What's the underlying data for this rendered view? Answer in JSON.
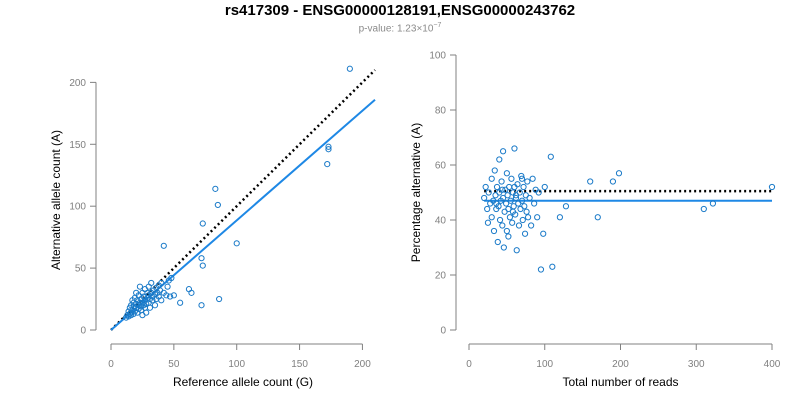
{
  "figure": {
    "title": "rs417309 - ENSG00000128191,ENSG00000243762",
    "subtitle_prefix": "p-value: 1.23",
    "subtitle_times": "×",
    "subtitle_base": "10",
    "subtitle_exp": "−7"
  },
  "colors": {
    "points": "#1a7ac8",
    "fit_line": "#1e88e5",
    "reference_line": "#000000",
    "axis": "#808080"
  },
  "chart_data": [
    {
      "type": "scatter",
      "title": "",
      "xlabel": "Reference allele count (G)",
      "ylabel": "Alternative allele count (A)",
      "xlim": [
        0,
        210
      ],
      "ylim": [
        0,
        210
      ],
      "xticks": [
        0,
        50,
        100,
        150,
        200
      ],
      "yticks": [
        0,
        50,
        100,
        150,
        200
      ],
      "grid": false,
      "fit_line": {
        "style": "solid",
        "from": [
          0,
          0
        ],
        "to": [
          210,
          186
        ]
      },
      "reference_line": {
        "style": "dotted",
        "from": [
          0,
          0
        ],
        "to": [
          210,
          210
        ]
      },
      "points": [
        [
          12,
          10
        ],
        [
          13,
          12
        ],
        [
          14,
          11
        ],
        [
          14,
          15
        ],
        [
          15,
          13
        ],
        [
          15,
          18
        ],
        [
          16,
          12
        ],
        [
          16,
          14
        ],
        [
          16,
          20
        ],
        [
          17,
          16
        ],
        [
          17,
          24
        ],
        [
          18,
          13
        ],
        [
          18,
          19
        ],
        [
          18,
          22
        ],
        [
          19,
          15
        ],
        [
          19,
          26
        ],
        [
          20,
          18
        ],
        [
          20,
          21
        ],
        [
          20,
          30
        ],
        [
          21,
          14
        ],
        [
          21,
          24
        ],
        [
          22,
          17
        ],
        [
          22,
          20
        ],
        [
          22,
          28
        ],
        [
          23,
          35
        ],
        [
          23,
          22
        ],
        [
          24,
          16
        ],
        [
          24,
          19
        ],
        [
          24,
          25
        ],
        [
          25,
          12
        ],
        [
          25,
          22
        ],
        [
          25,
          30
        ],
        [
          26,
          20
        ],
        [
          26,
          27
        ],
        [
          27,
          18
        ],
        [
          27,
          24
        ],
        [
          27,
          33
        ],
        [
          28,
          21
        ],
        [
          28,
          14
        ],
        [
          29,
          26
        ],
        [
          29,
          30
        ],
        [
          30,
          22
        ],
        [
          30,
          28
        ],
        [
          30,
          35
        ],
        [
          31,
          18
        ],
        [
          31,
          25
        ],
        [
          32,
          30
        ],
        [
          32,
          38
        ],
        [
          33,
          24
        ],
        [
          33,
          27
        ],
        [
          34,
          32
        ],
        [
          35,
          20
        ],
        [
          35,
          29
        ],
        [
          36,
          34
        ],
        [
          36,
          25
        ],
        [
          37,
          30
        ],
        [
          38,
          36
        ],
        [
          38,
          27
        ],
        [
          39,
          32
        ],
        [
          40,
          38
        ],
        [
          40,
          24
        ],
        [
          42,
          68
        ],
        [
          42,
          30
        ],
        [
          44,
          28
        ],
        [
          45,
          35
        ],
        [
          46,
          40
        ],
        [
          47,
          27
        ],
        [
          48,
          42
        ],
        [
          50,
          28
        ],
        [
          55,
          22
        ],
        [
          62,
          33
        ],
        [
          64,
          30
        ],
        [
          72,
          58
        ],
        [
          72,
          20
        ],
        [
          73,
          86
        ],
        [
          73,
          52
        ],
        [
          83,
          114
        ],
        [
          85,
          101
        ],
        [
          86,
          25
        ],
        [
          100,
          70
        ],
        [
          172,
          134
        ],
        [
          173,
          146
        ],
        [
          173,
          148
        ],
        [
          190,
          211
        ]
      ]
    },
    {
      "type": "scatter",
      "title": "",
      "xlabel": "Total number of reads",
      "ylabel": "Percentage alternative (A)",
      "xlim": [
        0,
        400
      ],
      "ylim": [
        0,
        100
      ],
      "xticks": [
        0,
        100,
        200,
        300,
        400
      ],
      "yticks": [
        0,
        20,
        40,
        60,
        80,
        100
      ],
      "grid": false,
      "fit_line": {
        "style": "solid",
        "y": 47
      },
      "reference_line": {
        "style": "dotted",
        "y": 50.5
      },
      "points": [
        [
          20,
          48
        ],
        [
          22,
          52
        ],
        [
          24,
          44
        ],
        [
          25,
          39
        ],
        [
          26,
          50
        ],
        [
          28,
          46
        ],
        [
          30,
          55
        ],
        [
          30,
          41
        ],
        [
          32,
          47
        ],
        [
          33,
          36
        ],
        [
          34,
          58
        ],
        [
          35,
          49
        ],
        [
          36,
          44
        ],
        [
          37,
          52
        ],
        [
          38,
          32
        ],
        [
          39,
          45
        ],
        [
          40,
          62
        ],
        [
          40,
          50
        ],
        [
          41,
          40
        ],
        [
          42,
          47
        ],
        [
          43,
          54
        ],
        [
          44,
          38
        ],
        [
          45,
          48
        ],
        [
          45,
          65
        ],
        [
          46,
          30
        ],
        [
          47,
          43
        ],
        [
          48,
          51
        ],
        [
          49,
          46
        ],
        [
          50,
          57
        ],
        [
          50,
          36
        ],
        [
          51,
          49
        ],
        [
          52,
          44
        ],
        [
          53,
          52
        ],
        [
          54,
          41
        ],
        [
          55,
          47
        ],
        [
          56,
          55
        ],
        [
          57,
          39
        ],
        [
          58,
          50
        ],
        [
          59,
          45
        ],
        [
          60,
          66
        ],
        [
          60,
          52
        ],
        [
          61,
          42
        ],
        [
          62,
          48
        ],
        [
          63,
          29
        ],
        [
          64,
          53
        ],
        [
          65,
          46
        ],
        [
          66,
          38
        ],
        [
          67,
          50
        ],
        [
          68,
          44
        ],
        [
          69,
          56
        ],
        [
          70,
          47
        ],
        [
          71,
          40
        ],
        [
          72,
          52
        ],
        [
          73,
          45
        ],
        [
          74,
          35
        ],
        [
          75,
          49
        ],
        [
          76,
          43
        ],
        [
          77,
          54
        ],
        [
          78,
          41
        ],
        [
          80,
          48
        ],
        [
          82,
          38
        ],
        [
          84,
          55
        ],
        [
          86,
          46
        ],
        [
          88,
          51
        ],
        [
          90,
          41
        ],
        [
          92,
          50
        ],
        [
          95,
          22
        ],
        [
          98,
          35
        ],
        [
          100,
          52
        ],
        [
          108,
          63
        ],
        [
          110,
          23
        ],
        [
          120,
          41
        ],
        [
          128,
          45
        ],
        [
          160,
          54
        ],
        [
          170,
          41
        ],
        [
          190,
          54
        ],
        [
          198,
          57
        ],
        [
          310,
          44
        ],
        [
          322,
          46
        ],
        [
          400,
          52
        ],
        [
          36,
          46
        ],
        [
          44,
          51
        ],
        [
          52,
          34
        ],
        [
          58,
          43
        ],
        [
          62,
          49
        ],
        [
          70,
          55
        ]
      ]
    }
  ]
}
